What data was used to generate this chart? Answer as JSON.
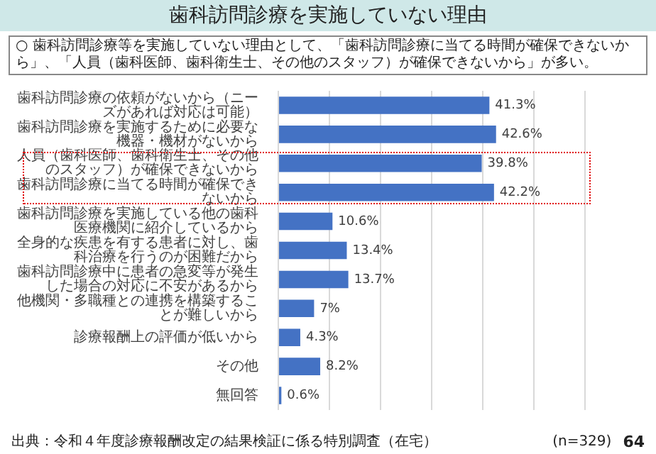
{
  "chart_data": {
    "type": "bar",
    "orientation": "horizontal",
    "title": "歯科訪問診療を実施していない理由",
    "subtitle": "○ 歯科訪問診療等を実施していない理由として、「歯科訪問診療に当てる時間が確保できないから」、「人員（歯科医師、歯科衛生士、その他のスタッフ）が確保できないから」が多い。",
    "categories": [
      "歯科訪問診療の依頼がないから（ニーズがあれば対応は可能）",
      "歯科訪問診療を実施するために必要な機器・機材がないから",
      "人員（歯科医師、歯科衛生士、その他のスタッフ）が確保できないから",
      "歯科訪問診療に当てる時間が確保できないから",
      "歯科訪問診療を実施している他の歯科医療機関に紹介しているから",
      "全身的な疾患を有する患者に対し、歯科治療を行うのが困難だから",
      "歯科訪問診療中に患者の急変等が発生した場合の対応に不安があるから",
      "他機関・多職種との連携を構築することが難しいから",
      "診療報酬上の評価が低いから",
      "その他",
      "無回答"
    ],
    "values": [
      41.3,
      42.6,
      39.8,
      42.2,
      10.6,
      13.4,
      13.7,
      7,
      4.3,
      8.2,
      0.6
    ],
    "value_labels": [
      "41.3%",
      "42.6%",
      "39.8%",
      "42.2%",
      "10.6%",
      "13.4%",
      "13.7%",
      "7%",
      "4.3%",
      "8.2%",
      "0.6%"
    ],
    "color": "#4472c4",
    "xlim": [
      0,
      60
    ],
    "xticks": [
      {
        "value": 0,
        "label": null
      },
      {
        "value": 10,
        "label": null
      },
      {
        "value": 20,
        "label": null
      },
      {
        "value": 30,
        "label": null
      },
      {
        "value": 40,
        "label": null
      },
      {
        "value": 50,
        "label": null
      },
      {
        "value": 60,
        "label": null
      }
    ],
    "tick_labels": "y",
    "grid": "x",
    "legend": false,
    "annotations": [
      "(n=329)",
      "出典：令和４年度診療報酬改定の結果検証に係る特別調査（在宅）",
      "64"
    ]
  }
}
